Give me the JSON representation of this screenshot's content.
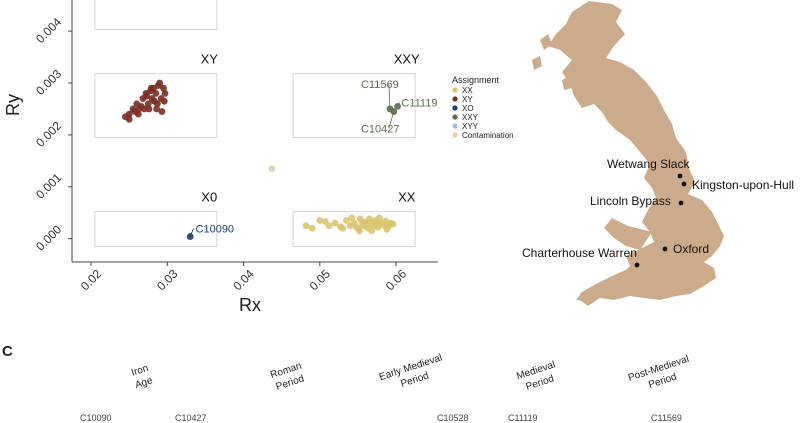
{
  "chart_data": {
    "type": "scatter",
    "xlabel": "Rx",
    "ylabel": "Ry",
    "xticks": [
      "0.02",
      "0.03",
      "0.04",
      "0.05",
      "0.06"
    ],
    "yticks": [
      "0.000",
      "0.001",
      "0.002",
      "0.003",
      "0.004"
    ],
    "xlim": [
      0.0175,
      0.0655
    ],
    "ylim": [
      -0.00045,
      0.0046
    ],
    "region_labels": [
      "XY",
      "XXY",
      "X0",
      "XX"
    ],
    "legend": {
      "title": "Assignment",
      "items": [
        {
          "label": "XX",
          "color": "#d9c46e"
        },
        {
          "label": "XY",
          "color": "#7a2c22"
        },
        {
          "label": "XO",
          "color": "#1f3d6e"
        },
        {
          "label": "XXY",
          "color": "#5a6e4a"
        },
        {
          "label": "XYY",
          "color": "#9fc3d6"
        },
        {
          "label": "Contamination",
          "color": "#e0ccb0"
        }
      ],
      "placement": "right"
    },
    "series": [
      {
        "name": "XY",
        "color": "#7a2c22",
        "points": [
          [
            0.0245,
            0.00235
          ],
          [
            0.025,
            0.0024
          ],
          [
            0.0255,
            0.0025
          ],
          [
            0.026,
            0.0026
          ],
          [
            0.0262,
            0.0024
          ],
          [
            0.0268,
            0.0027
          ],
          [
            0.027,
            0.0025
          ],
          [
            0.0272,
            0.0028
          ],
          [
            0.0275,
            0.0026
          ],
          [
            0.0278,
            0.00285
          ],
          [
            0.028,
            0.0027
          ],
          [
            0.0282,
            0.0029
          ],
          [
            0.0285,
            0.0028
          ],
          [
            0.0287,
            0.0026
          ],
          [
            0.029,
            0.003
          ],
          [
            0.0292,
            0.0027
          ],
          [
            0.0295,
            0.0029
          ],
          [
            0.0297,
            0.0028
          ],
          [
            0.0276,
            0.0025
          ],
          [
            0.0288,
            0.00295
          ],
          [
            0.0266,
            0.00255
          ],
          [
            0.0283,
            0.00265
          ],
          [
            0.0293,
            0.00245
          ],
          [
            0.025,
            0.0023
          ],
          [
            0.0258,
            0.00245
          ],
          [
            0.0273,
            0.00275
          ],
          [
            0.0286,
            0.0025
          ],
          [
            0.0296,
            0.00265
          ],
          [
            0.0263,
            0.0025
          ],
          [
            0.0279,
            0.0029
          ]
        ]
      },
      {
        "name": "XXY",
        "color": "#5a6e4a",
        "points": [
          [
            0.0592,
            0.0025
          ],
          [
            0.0602,
            0.00255
          ],
          [
            0.0597,
            0.00245
          ]
        ]
      },
      {
        "name": "XO",
        "color": "#1f3d6e",
        "points": [
          [
            0.033,
            4e-05
          ]
        ]
      },
      {
        "name": "Contamination",
        "color": "#e0ccb0",
        "points": [
          [
            0.0437,
            0.00135
          ]
        ]
      },
      {
        "name": "XX",
        "color": "#d9c46e",
        "points": [
          [
            0.0482,
            0.00025
          ],
          [
            0.049,
            0.0002
          ],
          [
            0.05,
            0.00035
          ],
          [
            0.0512,
            0.00025
          ],
          [
            0.052,
            0.0003
          ],
          [
            0.053,
            0.0002
          ],
          [
            0.0535,
            0.00035
          ],
          [
            0.054,
            0.00025
          ],
          [
            0.0545,
            0.0003
          ],
          [
            0.055,
            0.0002
          ],
          [
            0.0553,
            0.00038
          ],
          [
            0.0556,
            0.00028
          ],
          [
            0.056,
            0.00032
          ],
          [
            0.0563,
            0.0002
          ],
          [
            0.0566,
            0.0003
          ],
          [
            0.057,
            0.00025
          ],
          [
            0.0573,
            0.00035
          ],
          [
            0.0576,
            0.00022
          ],
          [
            0.058,
            0.0003
          ],
          [
            0.0583,
            0.00026
          ],
          [
            0.0586,
            0.00034
          ],
          [
            0.059,
            0.00024
          ],
          [
            0.0593,
            0.0003
          ],
          [
            0.0596,
            0.00028
          ],
          [
            0.0552,
            0.00015
          ],
          [
            0.0542,
            0.0004
          ],
          [
            0.0568,
            0.00015
          ],
          [
            0.0578,
            0.0004
          ],
          [
            0.0507,
            0.00033
          ],
          [
            0.0527,
            0.00023
          ],
          [
            0.0558,
            0.00025
          ],
          [
            0.0588,
            0.00018
          ],
          [
            0.0575,
            0.00028
          ],
          [
            0.0548,
            0.00022
          ],
          [
            0.0565,
            0.00038
          ]
        ]
      }
    ],
    "point_labels": [
      {
        "text": "C11569",
        "color": "#5a6e4a"
      },
      {
        "text": "C11119",
        "color": "#5a6e4a"
      },
      {
        "text": "C10427",
        "color": "#5a6e4a"
      },
      {
        "text": "C10090",
        "color": "#1f3d6e"
      }
    ]
  },
  "map": {
    "sites": [
      {
        "name": "Wetwang Slack"
      },
      {
        "name": "Kingston-upon-Hull"
      },
      {
        "name": "Lincoln Bypass"
      },
      {
        "name": "Charterhouse Warren"
      },
      {
        "name": "Oxford"
      }
    ],
    "land_color": "#cbab8c"
  },
  "panel_c": {
    "letter": "C",
    "periods": [
      {
        "line1": "Iron",
        "line2": "Age"
      },
      {
        "line1": "Roman",
        "line2": "Period"
      },
      {
        "line1": "Early Medieval",
        "line2": "Period"
      },
      {
        "line1": "Medieval",
        "line2": "Period"
      },
      {
        "line1": "Post-Medieval",
        "line2": "Period"
      }
    ],
    "sample_ids": [
      "C10090",
      "C10427",
      "C10528",
      "C11119",
      "C11569"
    ]
  }
}
